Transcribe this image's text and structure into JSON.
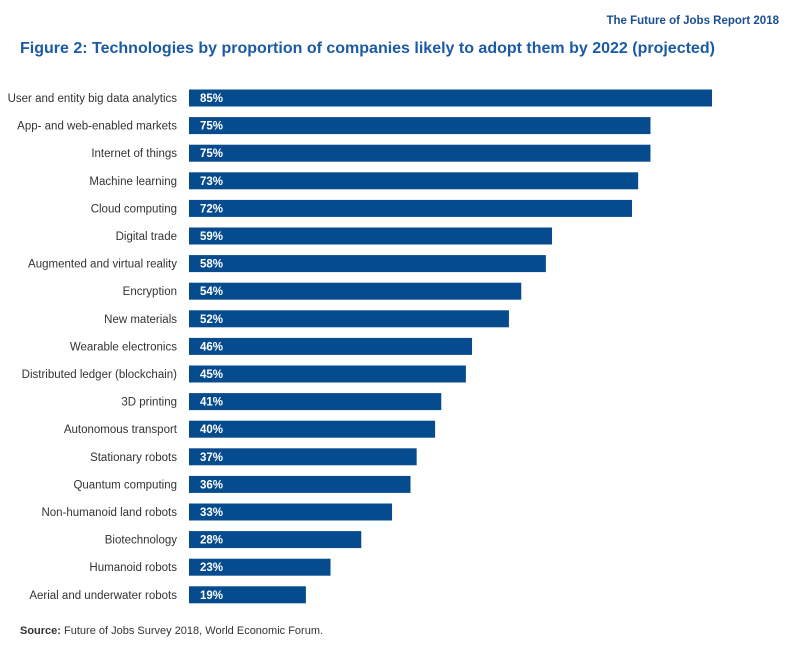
{
  "header": {
    "report_title": "The Future of Jobs Report 2018",
    "figure_title": "Figure 2: Technologies by proportion of companies likely to adopt them by 2022 (projected)"
  },
  "source": {
    "label": "Source:",
    "text": "Future of Jobs Survey 2018, World Economic Forum."
  },
  "colors": {
    "bar": "#064b8e",
    "title": "#1b5aa5"
  },
  "chart_data": {
    "type": "bar",
    "orientation": "horizontal",
    "categories": [
      "User and entity big data analytics",
      "App- and web-enabled markets",
      "Internet of things",
      "Machine learning",
      "Cloud computing",
      "Digital trade",
      "Augmented and virtual reality",
      "Encryption",
      "New materials",
      "Wearable electronics",
      "Distributed ledger (blockchain)",
      "3D printing",
      "Autonomous transport",
      "Stationary robots",
      "Quantum computing",
      "Non-humanoid land robots",
      "Biotechnology",
      "Humanoid robots",
      "Aerial and underwater robots"
    ],
    "values": [
      85,
      75,
      75,
      73,
      72,
      59,
      58,
      54,
      52,
      46,
      45,
      41,
      40,
      37,
      36,
      33,
      28,
      23,
      19
    ],
    "value_labels": [
      "85%",
      "75%",
      "75%",
      "73%",
      "72%",
      "59%",
      "58%",
      "54%",
      "52%",
      "46%",
      "45%",
      "41%",
      "40%",
      "37%",
      "36%",
      "33%",
      "28%",
      "23%",
      "19%"
    ],
    "xlim": [
      0,
      85
    ],
    "grid": false,
    "legend": "none"
  }
}
